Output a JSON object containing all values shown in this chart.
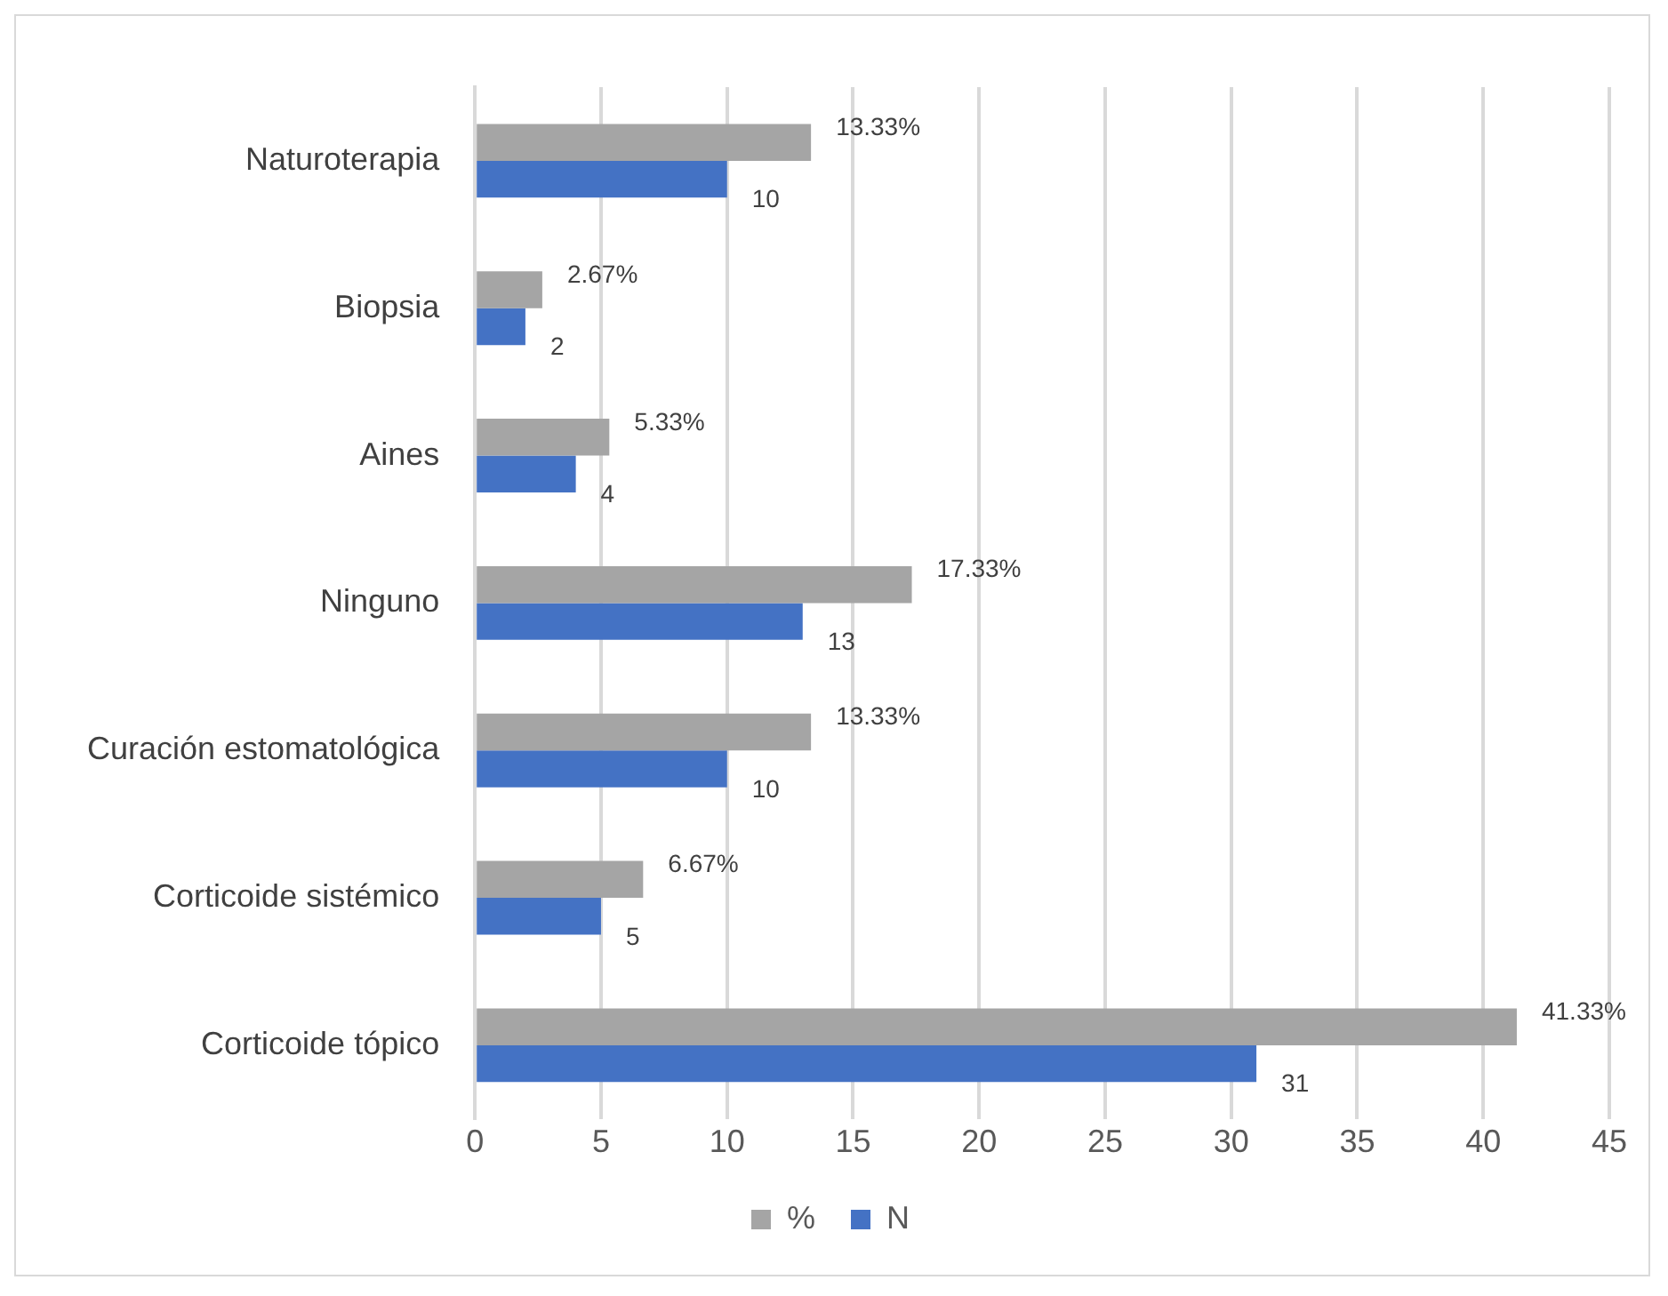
{
  "chart_data": {
    "type": "bar",
    "orientation": "horizontal",
    "categories": [
      "Naturoterapia",
      "Biopsia",
      "Aines",
      "Ninguno",
      "Curación estomatológica",
      "Corticoide sistémico",
      "Corticoide tópico"
    ],
    "series": [
      {
        "name": "%",
        "color": "#a5a5a5",
        "values": [
          13.33,
          2.67,
          5.33,
          17.33,
          13.33,
          6.67,
          41.33
        ],
        "value_labels": [
          "13.33%",
          "2.67%",
          "5.33%",
          "17.33%",
          "13.33%",
          "6.67%",
          "41.33%"
        ]
      },
      {
        "name": "N",
        "color": "#4472c4",
        "values": [
          10,
          2,
          4,
          13,
          10,
          5,
          31
        ],
        "value_labels": [
          "10",
          "2",
          "4",
          "13",
          "10",
          "5",
          "31"
        ]
      }
    ],
    "xlim": [
      0,
      45
    ],
    "xticks": [
      0,
      5,
      10,
      15,
      20,
      25,
      30,
      35,
      40,
      45
    ],
    "grid": "x",
    "legend": "bottom"
  }
}
